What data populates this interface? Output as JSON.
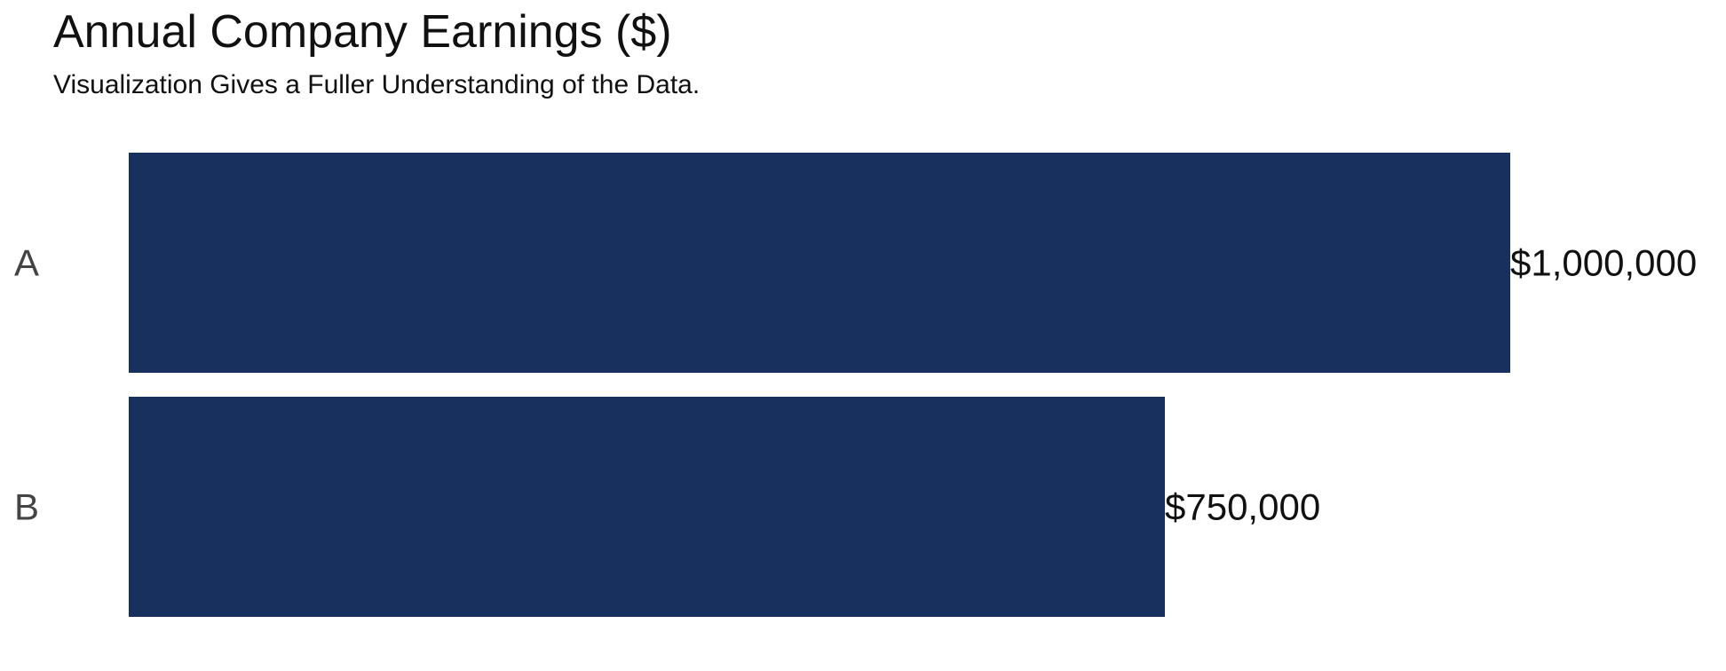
{
  "chart_data": {
    "type": "bar",
    "orientation": "horizontal",
    "title": "Annual Company Earnings ($)",
    "subtitle": "Visualization Gives a Fuller Understanding of the Data.",
    "xlabel": "",
    "ylabel": "",
    "categories": [
      "A",
      "B"
    ],
    "values": [
      1000000,
      750000
    ],
    "data_labels": [
      "$1,000,000",
      "$750,000"
    ],
    "xlim": [
      0,
      1000000
    ],
    "grid": false,
    "legend": "none",
    "bar_color": "#17305d",
    "category_label_color": "#444444",
    "value_label_color": "#111111"
  }
}
